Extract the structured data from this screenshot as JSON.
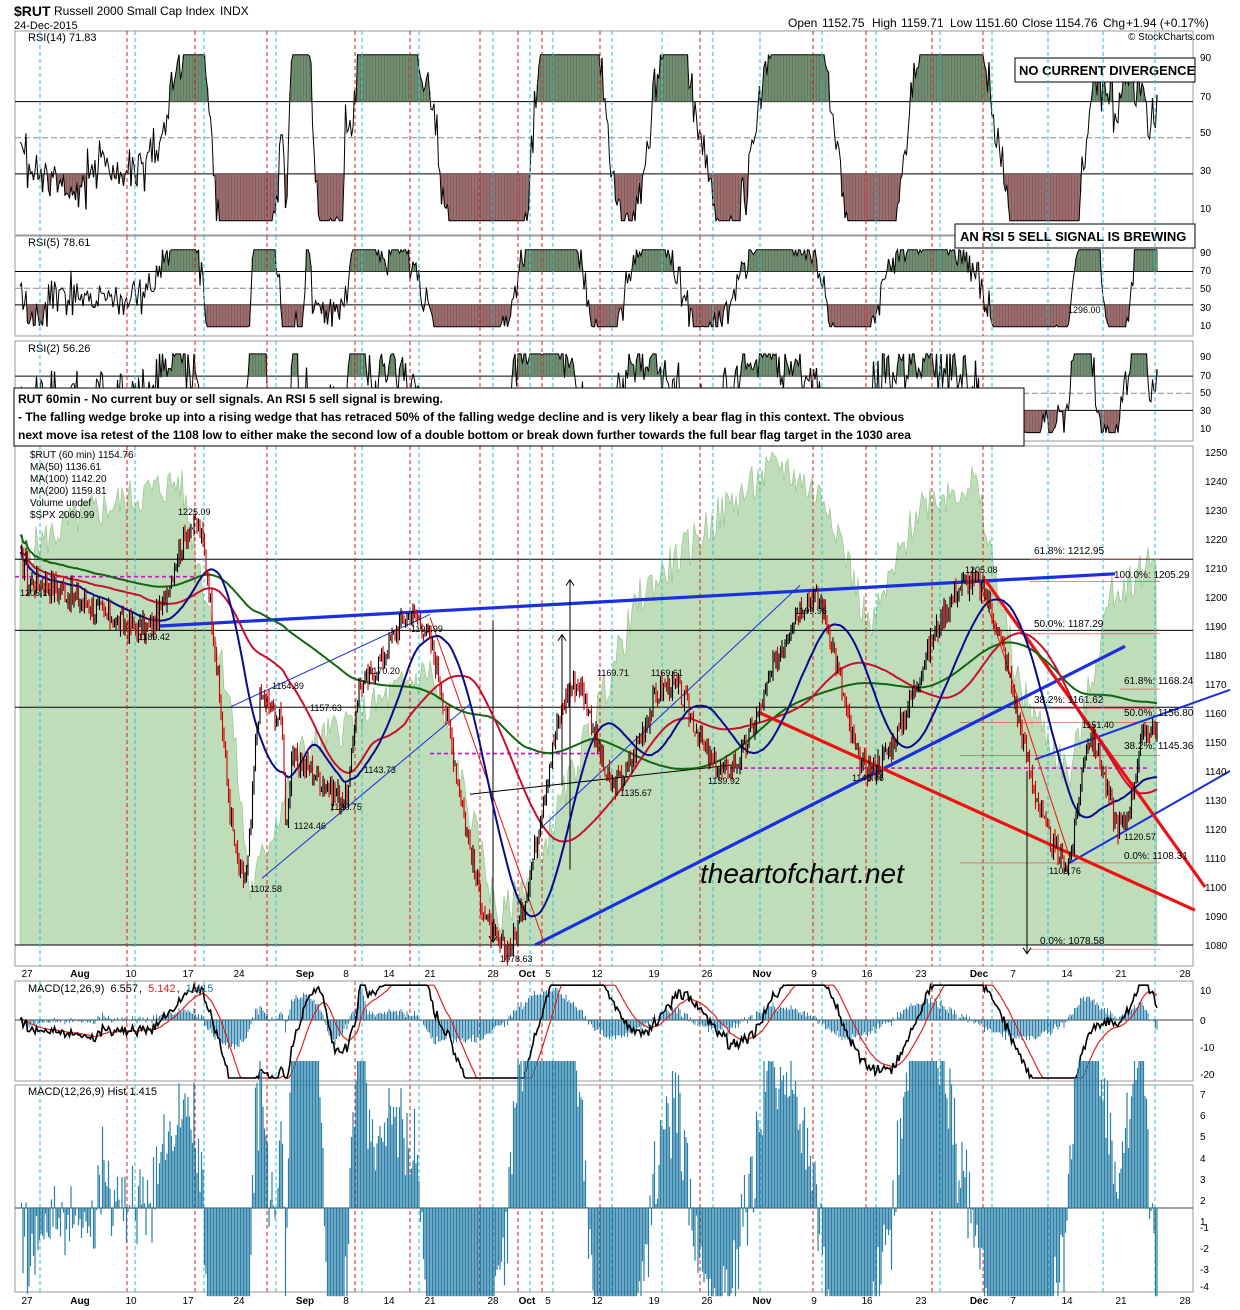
{
  "header": {
    "symbol": "$RUT",
    "name": "Russell 2000 Small Cap Index",
    "exchange": "INDX",
    "date": "24-Dec-2015",
    "open_label": "Open",
    "open": "1152.75",
    "high_label": "High",
    "high": "1159.71",
    "low_label": "Low",
    "low": "1151.60",
    "close_label": "Close",
    "close": "1154.76",
    "chg_label": "Chg",
    "chg": "+1.94 (+0.17%)",
    "credit": "© StockCharts.com"
  },
  "panels": {
    "rsi14": {
      "label": "RSI(14) 71.83",
      "ticks": [
        "90",
        "70",
        "50",
        "30",
        "10"
      ],
      "note": "NO CURRENT DIVERGENCE"
    },
    "rsi5": {
      "label": "RSI(5) 78.61",
      "ticks": [
        "90",
        "70",
        "50",
        "30",
        "10"
      ],
      "note": "AN RSI 5 SELL SIGNAL IS BREWING",
      "inline_value": "1296.00"
    },
    "rsi2": {
      "label": "RSI(2) 56.26",
      "ticks": [
        "90",
        "70",
        "50",
        "30",
        "10"
      ]
    },
    "commentary": [
      "RUT 60min - No current buy or sell signals. An RSI 5 sell signal is brewing.",
      "- The falling wedge broke up into a rising wedge that has retraced 50% of the falling wedge decline and is very likely a bear flag in this context. The obvious",
      "next move isa retest of the 1108 low to either make the second low of a double bottom or break down further towards the full bear flag target in the 1030 area"
    ],
    "price": {
      "legend": [
        {
          "text": "$RUT (60 min) 1154.76",
          "color": "#000000"
        },
        {
          "text": "MA(50) 1136.61",
          "color": "#0a0a8c"
        },
        {
          "text": "MA(100) 1142.20",
          "color": "#c8102e"
        },
        {
          "text": "MA(200) 1159.81",
          "color": "#116611"
        },
        {
          "text": "Volume undef",
          "color": "#555555"
        },
        {
          "text": "$SPX 2060.99",
          "color": "#3a8a3a"
        }
      ],
      "price_labels": [
        "1205.19",
        "1189.42",
        "1225.09",
        "1102.58",
        "1164.89",
        "1157.63",
        "1124.46",
        "1170.20",
        "1130.75",
        "1143.73",
        "1193.99",
        "1078.63",
        "1169.71",
        "1135.67",
        "1169.61",
        "1139.92",
        "1199.96",
        "1140.76",
        "1205.08",
        "1151.40",
        "1120.57",
        "1108.76"
      ],
      "fib_labels": [
        "61.8%: 1212.95",
        "100.0%: 1205.29",
        "50.0%: 1187.29",
        "61.8%: 1168.24",
        "38.2%: 1161.62",
        "50.0%: 1156.80",
        "38.2%: 1145.36",
        "0.0%: 1108.31",
        "0.0%: 1078.58"
      ],
      "watermark": "theartofchart.net"
    },
    "macd": {
      "label_prefix": "MACD(12,26,9)",
      "v1": "6.557",
      "v2": "5.142",
      "v3": "1.415",
      "ticks": [
        "10",
        "0",
        "-10",
        "-20"
      ]
    },
    "hist": {
      "label": "MACD(12,26,9) Hist 1.415",
      "ticks": [
        "7",
        "6",
        "5",
        "4",
        "3",
        "2",
        "1",
        "0",
        "-1",
        "-2",
        "-3",
        "-4"
      ]
    }
  },
  "chart_data": {
    "type": "line",
    "title": "$RUT Russell 2000 Small Cap Index INDX",
    "x_ticks": [
      "27",
      "Aug",
      "10",
      "17",
      "24",
      "Sep",
      "8",
      "14",
      "21",
      "28",
      "Oct",
      "5",
      "12",
      "19",
      "26",
      "Nov",
      "9",
      "16",
      "23",
      "Dec",
      "7",
      "14",
      "21",
      "28"
    ],
    "ylim": [
      1075,
      1250
    ],
    "y_ticks": [
      1250,
      1240,
      1230,
      1220,
      1210,
      1200,
      1190,
      1180,
      1170,
      1160,
      1150,
      1140,
      1130,
      1120,
      1110,
      1100,
      1090,
      1080
    ],
    "series": [
      {
        "name": "$RUT (60 min) 1154.76",
        "values": [
          {
            "x": "Jul 27",
            "y": 1205.19
          },
          {
            "x": "Aug 12",
            "y": 1189.42
          },
          {
            "x": "Aug 18",
            "y": 1225.09
          },
          {
            "x": "Aug 25",
            "y": 1102.58
          },
          {
            "x": "Aug 28",
            "y": 1164.89
          },
          {
            "x": "Sep 01",
            "y": 1157.63
          },
          {
            "x": "Sep 02",
            "y": 1124.46
          },
          {
            "x": "Sep 04",
            "y": 1143.73
          },
          {
            "x": "Sep 08",
            "y": 1130.75
          },
          {
            "x": "Sep 10",
            "y": 1170.2
          },
          {
            "x": "Sep 18",
            "y": 1193.99
          },
          {
            "x": "Sep 29",
            "y": 1078.63
          },
          {
            "x": "Oct 09",
            "y": 1169.71
          },
          {
            "x": "Oct 14",
            "y": 1135.67
          },
          {
            "x": "Oct 21",
            "y": 1169.61
          },
          {
            "x": "Oct 28",
            "y": 1139.92
          },
          {
            "x": "Nov 09",
            "y": 1199.96
          },
          {
            "x": "Nov 16",
            "y": 1140.76
          },
          {
            "x": "Nov 30",
            "y": 1205.08
          },
          {
            "x": "Dec 14",
            "y": 1108.76
          },
          {
            "x": "Dec 17",
            "y": 1151.4
          },
          {
            "x": "Dec 21",
            "y": 1120.57
          },
          {
            "x": "Dec 24",
            "y": 1154.76
          }
        ]
      }
    ],
    "moving_averages": [
      {
        "name": "MA(50) 1136.61",
        "last": 1136.61
      },
      {
        "name": "MA(100) 1142.20",
        "last": 1142.2
      },
      {
        "name": "MA(200) 1159.81",
        "last": 1159.81
      }
    ],
    "grid": true,
    "legend_position": "top-left"
  },
  "colors": {
    "ma50": "#0a0a8c",
    "ma100": "#c8102e",
    "ma200": "#116611",
    "spx_area": "#a8d2a0",
    "trend_blue": "#1a2fe0",
    "trend_red": "#ee1111",
    "fib_red": "#e04040",
    "magenta": "#d010d0",
    "hist_bar": "#2a7fa8",
    "rsi_fill_high": "#5e7d5e",
    "rsi_fill_low": "#8c5a5a",
    "vline_red": "#cc2222",
    "vline_cyan": "#22c4d4"
  }
}
